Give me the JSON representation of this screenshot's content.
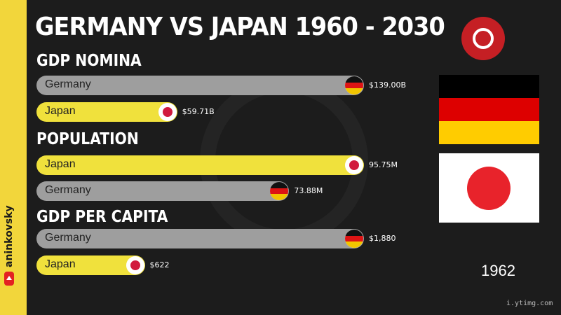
{
  "title": "GERMANY VS JAPAN 1960 - 2030",
  "year": "1962",
  "channel": "aninkovsky",
  "watermark": "i.ytimg.com",
  "colors": {
    "germany_bar": "#9e9e9e",
    "japan_bar": "#f0e13c",
    "sidebar": "#f2d63b",
    "background": "#1c1c1c"
  },
  "chart_data": [
    {
      "type": "bar",
      "title": "GDP NOMINA",
      "series": [
        {
          "name": "Germany",
          "value": 139.0,
          "label": "$139.00B",
          "flag": "germany-flag-icon"
        },
        {
          "name": "Japan",
          "value": 59.71,
          "label": "$59.71B",
          "flag": "japan-flag-icon"
        }
      ]
    },
    {
      "type": "bar",
      "title": "POPULATION",
      "series": [
        {
          "name": "Japan",
          "value": 95.75,
          "label": "95.75M",
          "flag": "japan-flag-icon"
        },
        {
          "name": "Germany",
          "value": 73.88,
          "label": "73.88M",
          "flag": "germany-flag-icon"
        }
      ]
    },
    {
      "type": "bar",
      "title": "GDP PER CAPITA",
      "series": [
        {
          "name": "Germany",
          "value": 1880,
          "label": "$1,880",
          "flag": "germany-flag-icon"
        },
        {
          "name": "Japan",
          "value": 622,
          "label": "$622",
          "flag": "japan-flag-icon"
        }
      ]
    }
  ]
}
